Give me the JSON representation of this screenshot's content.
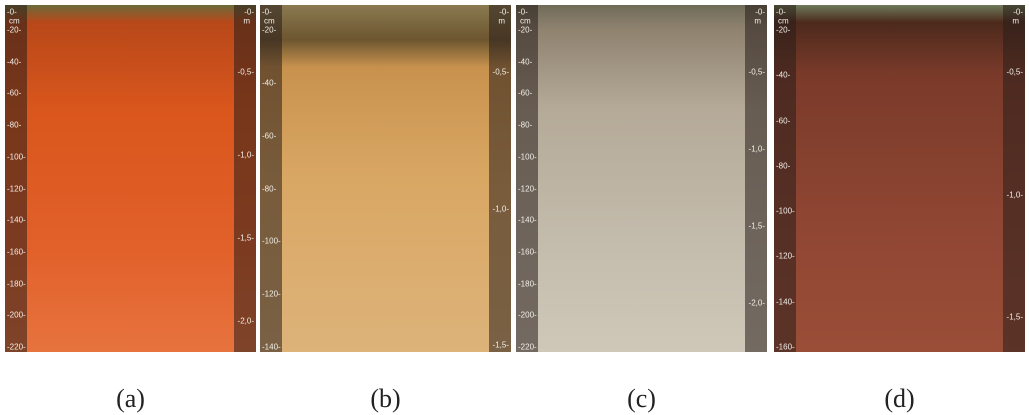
{
  "panels": [
    {
      "caption": "(a)",
      "left_unit": "cm",
      "right_unit": "m",
      "left_ticks": [
        "-0-",
        "-20-",
        "-40-",
        "-60-",
        "-80-",
        "-100-",
        "-120-",
        "-140-",
        "-160-",
        "-180-",
        "-200-",
        "-220-"
      ],
      "right_ticks": [
        "-0-",
        "-0,5-",
        "-1,0-",
        "-1,5-",
        "-2,0-"
      ]
    },
    {
      "caption": "(b)",
      "left_unit": "cm",
      "right_unit": "m",
      "left_ticks": [
        "-0-",
        "-20-",
        "-40-",
        "-60-",
        "-80-",
        "-100-",
        "-120-",
        "-140-"
      ],
      "right_ticks": [
        "-0-",
        "-0,5-",
        "-1,0-",
        "-1,5-"
      ]
    },
    {
      "caption": "(c)",
      "left_unit": "cm",
      "right_unit": "m",
      "left_ticks": [
        "-0-",
        "-20-",
        "-40-",
        "-60-",
        "-80-",
        "-100-",
        "-120-",
        "-140-",
        "-160-",
        "-180-",
        "-200-",
        "-220-"
      ],
      "right_ticks": [
        "-0-",
        "-0,5-",
        "-1,0-",
        "-1,5-",
        "-2,0-"
      ]
    },
    {
      "caption": "(d)",
      "left_unit": "cm",
      "right_unit": "m",
      "left_ticks": [
        "-0-",
        "-20-",
        "-40-",
        "-60-",
        "-80-",
        "-100-",
        "-120-",
        "-140-",
        "-160-"
      ],
      "right_ticks": [
        "-0-",
        "-0,5-",
        "-1,0-",
        "-1,5-"
      ]
    }
  ]
}
